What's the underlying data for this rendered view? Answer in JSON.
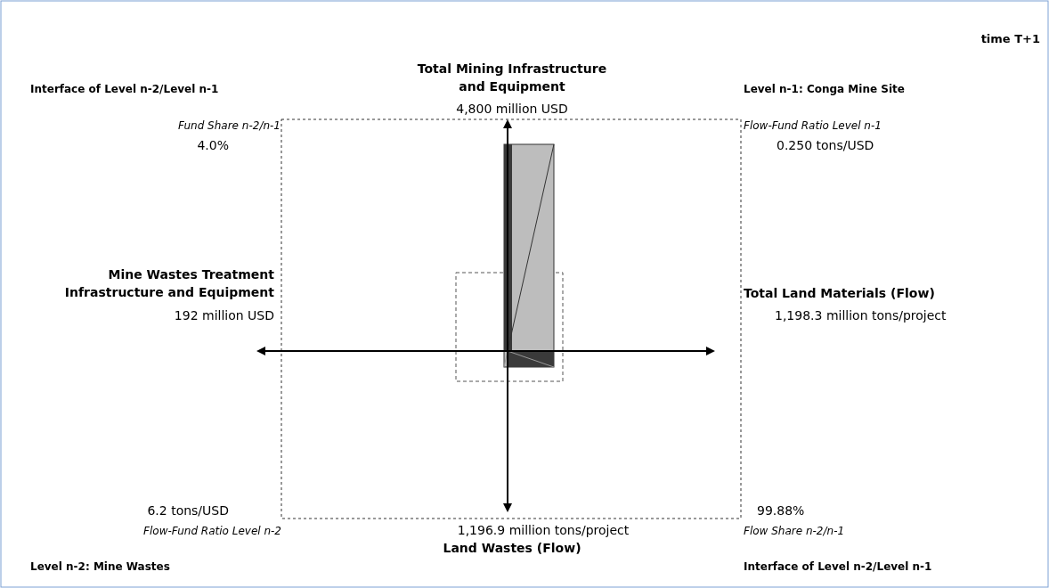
{
  "chart_data": {
    "type": "other",
    "title": "time T+1",
    "categories": [
      "Total Mining Infrastructure and Equipment",
      "Total Land Materials (Flow)",
      "Land Wastes (Flow)",
      "Mine Wastes Treatment Infrastructure and Equipment"
    ],
    "values": [
      4800,
      1198.3,
      1196.9,
      192
    ],
    "value_labels": [
      "4,800 million USD",
      "1,198.3 million tons/project",
      "1,196.9 million tons/project",
      "192 million USD"
    ],
    "annotations": [
      "Interface of Level n-2/Level n-1",
      "Level n-1: Conga Mine Site",
      "Level n-2: Mine Wastes",
      "Interface of Level n-2/Level n-1",
      "Fund Share n-2/n-1",
      "4.0%",
      "Flow-Fund Ratio Level n-1",
      "0.250 tons/USD",
      "Flow-Fund Ratio Level n-2",
      "6.2 tons/USD",
      "Flow Share n-2/n-1",
      "99.88%"
    ]
  }
}
